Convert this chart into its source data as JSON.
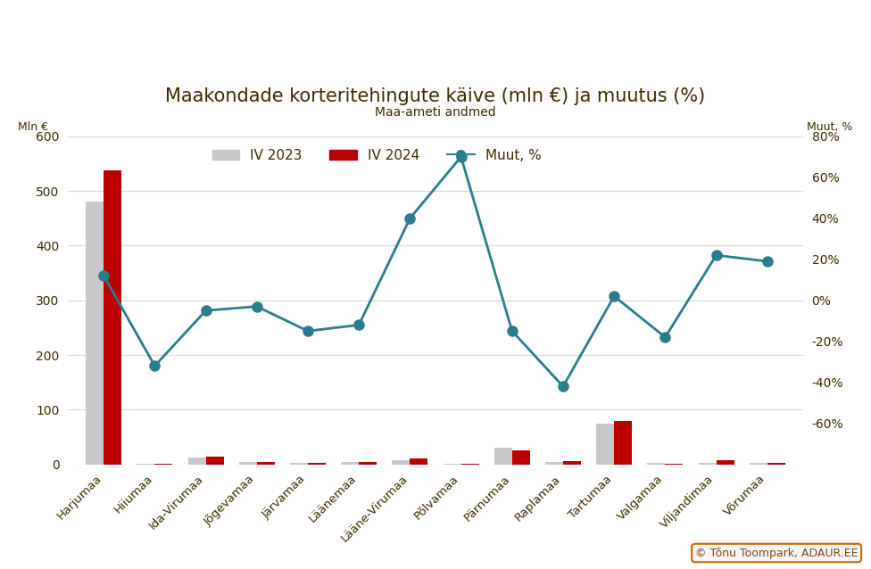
{
  "title": "Maakondade korteritehingute käive (mln €) ja muutus (%)",
  "subtitle": "Maa-ameti andmed",
  "ylabel_left": "Mln €",
  "ylabel_right": "Muut, %",
  "categories": [
    "Harjumaa",
    "Hiiumaa",
    "Ida-Virumaa",
    "Jõgevamaa",
    "Järvamaa",
    "Läänemaa",
    "Lääne-Virumaa",
    "Põlvamaa",
    "Pärnumaa",
    "Raplamaa",
    "Tartumaa",
    "Valgamaa",
    "Viljandimaa",
    "Võrumaa"
  ],
  "values_2023": [
    480,
    1.5,
    13,
    4,
    2,
    5,
    7,
    0.3,
    30,
    5,
    75,
    2,
    3,
    3
  ],
  "values_2024": [
    537,
    0.8,
    14,
    3.5,
    2,
    5,
    10,
    0.3,
    25,
    5.5,
    80,
    1.5,
    8,
    2
  ],
  "change_pct": [
    12,
    -32,
    -5,
    -3,
    -15,
    -12,
    40,
    70,
    -15,
    -42,
    2,
    -18,
    22,
    19
  ],
  "bar_color_2023": "#c8c8c8",
  "bar_color_2024": "#bb0000",
  "line_color": "#2a7d8c",
  "ylim_left": [
    0,
    600
  ],
  "ylim_right": [
    -80,
    80
  ],
  "yticks_left": [
    0,
    100,
    200,
    300,
    400,
    500,
    600
  ],
  "yticks_right": [
    -60,
    -40,
    -20,
    0,
    20,
    40,
    60,
    80
  ],
  "background_color": "#ffffff",
  "title_color": "#3d2b00",
  "subtitle_color": "#3d2b00",
  "tick_color": "#3d2b00",
  "legend_labels": [
    "IV 2023",
    "IV 2024",
    "Muut, %"
  ],
  "copyright_text": "© Tõnu Toompark, ADAUR.EE",
  "copyright_bg": "#f5f5f5",
  "copyright_border": "#cc6600",
  "bar_width": 0.35,
  "figsize": [
    9.76,
    6.38
  ],
  "dpi": 100
}
